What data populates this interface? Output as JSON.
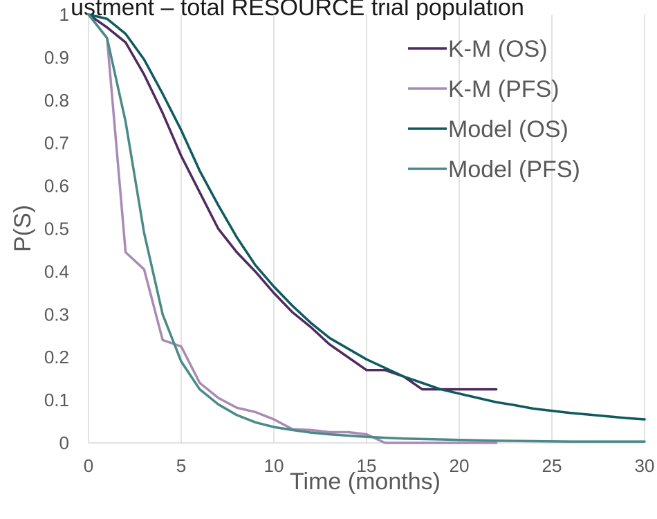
{
  "chart_data": {
    "type": "line",
    "title": "ustment – total RESOURCE trial population",
    "xlabel": "Time (months)",
    "ylabel": "P(S)",
    "xlim": [
      0,
      30
    ],
    "ylim": [
      0,
      1
    ],
    "x_ticks": [
      "0",
      "5",
      "10",
      "15",
      "20",
      "25",
      "30"
    ],
    "y_ticks": [
      "0",
      "0.1",
      "0.2",
      "0.3",
      "0.4",
      "0.5",
      "0.6",
      "0.7",
      "0.8",
      "0.9",
      "1"
    ],
    "grid": "vertical",
    "legend_position": "top-right",
    "series": [
      {
        "name": "K-M (OS)",
        "color": "#4e2a5e",
        "x": [
          0,
          1,
          2,
          3,
          4,
          5,
          6,
          7,
          8,
          9,
          10,
          11,
          12,
          13,
          14,
          15,
          16,
          17,
          18,
          19,
          20,
          21,
          22
        ],
        "y": [
          1,
          0.97,
          0.935,
          0.86,
          0.77,
          0.67,
          0.585,
          0.5,
          0.445,
          0.4,
          0.35,
          0.305,
          0.27,
          0.23,
          0.2,
          0.17,
          0.17,
          0.155,
          0.125,
          0.125,
          0.125,
          0.125,
          0.125
        ]
      },
      {
        "name": "K-M (PFS)",
        "color": "#a88bb5",
        "x": [
          0,
          1,
          2,
          3,
          4,
          5,
          6,
          7,
          8,
          9,
          10,
          11,
          12,
          13,
          14,
          15,
          16,
          17,
          18,
          19,
          20,
          21,
          22
        ],
        "y": [
          1,
          0.945,
          0.445,
          0.405,
          0.24,
          0.225,
          0.14,
          0.105,
          0.082,
          0.072,
          0.055,
          0.032,
          0.03,
          0.025,
          0.025,
          0.02,
          0,
          0,
          0,
          0,
          0,
          0,
          0
        ]
      },
      {
        "name": "Model (OS)",
        "color": "#0e5a5e",
        "x": [
          0,
          1,
          2,
          3,
          4,
          5,
          6,
          7,
          8,
          9,
          10,
          11,
          12,
          13,
          14,
          15,
          16,
          17,
          18,
          19,
          20,
          21,
          22,
          23,
          24,
          25,
          26,
          27,
          28,
          29,
          30
        ],
        "y": [
          1,
          0.99,
          0.955,
          0.895,
          0.815,
          0.73,
          0.635,
          0.555,
          0.48,
          0.415,
          0.365,
          0.32,
          0.28,
          0.245,
          0.22,
          0.195,
          0.175,
          0.155,
          0.14,
          0.125,
          0.115,
          0.105,
          0.095,
          0.088,
          0.08,
          0.075,
          0.07,
          0.066,
          0.062,
          0.058,
          0.055
        ]
      },
      {
        "name": "Model (PFS)",
        "color": "#4a8a88",
        "x": [
          0,
          1,
          2,
          3,
          4,
          5,
          6,
          7,
          8,
          9,
          10,
          11,
          12,
          13,
          14,
          15,
          16,
          17,
          18,
          19,
          20,
          22,
          24,
          26,
          28,
          30
        ],
        "y": [
          1,
          0.945,
          0.75,
          0.49,
          0.3,
          0.19,
          0.125,
          0.09,
          0.065,
          0.048,
          0.037,
          0.03,
          0.024,
          0.02,
          0.017,
          0.014,
          0.012,
          0.01,
          0.009,
          0.008,
          0.007,
          0.005,
          0.004,
          0.003,
          0.003,
          0.003
        ]
      }
    ]
  }
}
